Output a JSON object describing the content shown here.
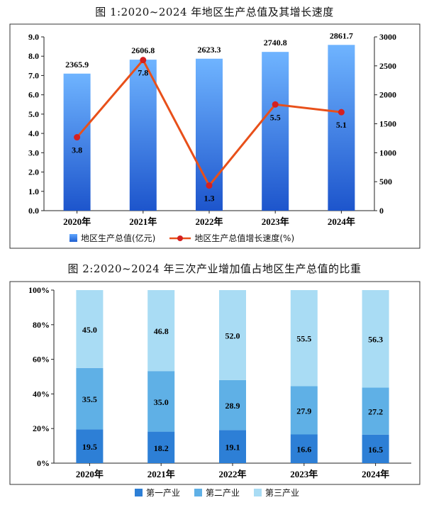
{
  "chart_data": [
    {
      "type": "bar",
      "title": "图 1:2020~2024 年地区生产总值及其增长速度",
      "categories": [
        "2020年",
        "2021年",
        "2022年",
        "2023年",
        "2024年"
      ],
      "series": [
        {
          "name": "地区生产总值(亿元)",
          "type": "bar",
          "axis": "right",
          "values": [
            2365.9,
            2606.8,
            2623.3,
            2740.8,
            2861.7
          ],
          "color": "#2f6fd8"
        },
        {
          "name": "地区生产总值增长速度(%)",
          "type": "line",
          "axis": "left",
          "values": [
            3.8,
            7.8,
            1.3,
            5.5,
            5.1
          ],
          "color": "#e8501a"
        }
      ],
      "ylim_left": [
        0,
        9
      ],
      "ylim_right": [
        0,
        3000
      ],
      "yticks_left": [
        "0.0",
        "1.0",
        "2.0",
        "3.0",
        "4.0",
        "5.0",
        "6.0",
        "7.0",
        "8.0",
        "9.0"
      ],
      "yticks_right": [
        "0",
        "500",
        "1000",
        "1500",
        "2000",
        "2500",
        "3000"
      ],
      "legend_position": "bottom"
    },
    {
      "type": "bar",
      "stacked": true,
      "title": "图 2:2020~2024 年三次产业增加值占地区生产总值的比重",
      "categories": [
        "2020年",
        "2021年",
        "2022年",
        "2023年",
        "2024年"
      ],
      "series": [
        {
          "name": "第一产业",
          "values": [
            19.5,
            18.2,
            19.1,
            16.6,
            16.5
          ],
          "color": "#2d7fd6"
        },
        {
          "name": "第二产业",
          "values": [
            35.5,
            35.0,
            28.9,
            27.9,
            27.2
          ],
          "color": "#5fb0e6"
        },
        {
          "name": "第三产业",
          "values": [
            45.0,
            46.8,
            52.0,
            55.5,
            56.3
          ],
          "color": "#a9dcf4"
        }
      ],
      "ylim": [
        0,
        100
      ],
      "yticks": [
        "0%",
        "20%",
        "40%",
        "60%",
        "80%",
        "100%"
      ],
      "legend_position": "bottom"
    }
  ]
}
